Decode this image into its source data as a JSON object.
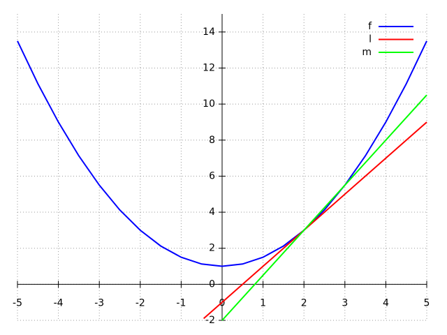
{
  "chart_data": {
    "type": "line",
    "xlim": [
      -5,
      5
    ],
    "xticks": [
      -5,
      -4,
      -3,
      -2,
      -1,
      0,
      1,
      2,
      3,
      4,
      5
    ],
    "ylim": [
      -2,
      15
    ],
    "yticks": [
      -2,
      0,
      2,
      4,
      6,
      8,
      10,
      12,
      14
    ],
    "grid": true,
    "legend": "top-right",
    "series": [
      {
        "name": "f",
        "color": "#0000ff",
        "x": [
          -5,
          -4.5,
          -4,
          -3.5,
          -3,
          -2.5,
          -2,
          -1.5,
          -1,
          -0.5,
          0,
          0.5,
          1,
          1.5,
          2,
          2.5,
          3,
          3.5,
          4,
          4.5,
          5
        ],
        "values": [
          13.5,
          11.125,
          9,
          7.125,
          5.5,
          4.125,
          3,
          2.125,
          1.5,
          1.125,
          1,
          1.125,
          1.5,
          2.125,
          3,
          4.125,
          5.5,
          7.125,
          9,
          11.125,
          13.5
        ]
      },
      {
        "name": "l",
        "color": "#ff0000",
        "x": [
          -0.45,
          5
        ],
        "values": [
          -1.9,
          9
        ]
      },
      {
        "name": "m",
        "color": "#00ff00",
        "x": [
          0,
          5
        ],
        "values": [
          -2,
          10.5
        ]
      }
    ]
  }
}
